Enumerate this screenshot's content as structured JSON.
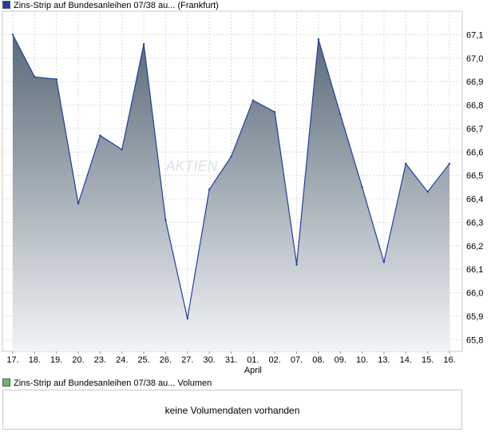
{
  "legend": {
    "price": {
      "label": "Zins-Strip auf Bundesanleihen 07/38 au...",
      "exchange": "(Frankfurt)",
      "color": "#1f3fa0"
    },
    "volume": {
      "label": "Zins-Strip auf Bundesanleihen 07/38 au...",
      "suffix": "Volumen",
      "color": "#66bb66"
    }
  },
  "watermark": "AKTIEN",
  "volume_panel": {
    "message": "keine Volumendaten vorhanden"
  },
  "chart_data": {
    "type": "area",
    "categories": [
      "17.",
      "18.",
      "19.",
      "20.",
      "23.",
      "24.",
      "25.",
      "26.",
      "27.",
      "30.",
      "31.",
      "01.",
      "02.",
      "07.",
      "08.",
      "09.",
      "10.",
      "13.",
      "14.",
      "15.",
      "16."
    ],
    "month_label": {
      "text": "April",
      "under": "01."
    },
    "series": [
      {
        "values": [
          67.1,
          66.92,
          66.91,
          66.38,
          66.67,
          66.61,
          67.06,
          66.31,
          65.89,
          66.44,
          66.58,
          66.82,
          66.77,
          66.12,
          67.08,
          66.76,
          66.45,
          66.13,
          66.55,
          66.43,
          66.55
        ]
      }
    ],
    "ylim": [
      65.75,
      67.2
    ],
    "yticks": [
      65.8,
      65.9,
      66.0,
      66.1,
      66.2,
      66.3,
      66.4,
      66.5,
      66.6,
      66.7,
      66.8,
      66.9,
      67.0,
      67.1
    ],
    "ytick_labels": [
      "65,8",
      "65,9",
      "66,0",
      "66,1",
      "66,2",
      "66,3",
      "66,4",
      "66,5",
      "66,6",
      "66,7",
      "66,8",
      "66,9",
      "67,0",
      "67,1"
    ],
    "grid": true,
    "line_color": "#1f3fa0",
    "fill_top_color": "#5a6a78",
    "fill_bottom_color": "#f2f4f6"
  }
}
